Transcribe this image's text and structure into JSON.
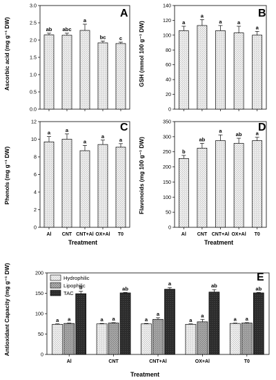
{
  "chart_data": [
    {
      "id": "A",
      "type": "bar",
      "panel_letter": "A",
      "categories": [
        "Al",
        "CNT",
        "CNT+Al",
        "OX+Al",
        "T0"
      ],
      "ylabel": "Ascorbic acid (mg g⁻¹ DW)",
      "ylim": [
        0,
        3.0
      ],
      "yticks": [
        "0.0",
        "0.5",
        "1.0",
        "1.5",
        "2.0",
        "2.5",
        "3.0"
      ],
      "series": [
        {
          "values": [
            2.15,
            2.14,
            2.28,
            1.92,
            1.9
          ],
          "errors": [
            0.05,
            0.06,
            0.18,
            0.05,
            0.04
          ],
          "pattern": "hatch-light"
        }
      ],
      "annotations": [
        [
          "ab",
          "abc",
          "a",
          "bc",
          "c"
        ]
      ],
      "show_xticklabels": false,
      "xlabel": ""
    },
    {
      "id": "B",
      "type": "bar",
      "panel_letter": "B",
      "categories": [
        "Al",
        "CNT",
        "CNT+Al",
        "OX+Al",
        "T0"
      ],
      "ylabel": "GSH (mmol 100 g⁻¹ DW)",
      "ylim": [
        0,
        140
      ],
      "yticks": [
        "0",
        "20",
        "40",
        "60",
        "80",
        "100",
        "120",
        "140"
      ],
      "series": [
        {
          "values": [
            106,
            113,
            106,
            103,
            100
          ],
          "errors": [
            6,
            8,
            7,
            9,
            5
          ],
          "pattern": "hatch-light"
        }
      ],
      "annotations": [
        [
          "a",
          "a",
          "a",
          "a",
          "a"
        ]
      ],
      "show_xticklabels": false,
      "xlabel": ""
    },
    {
      "id": "C",
      "type": "bar",
      "panel_letter": "C",
      "categories": [
        "Al",
        "CNT",
        "CNT+Al",
        "OX+Al",
        "T0"
      ],
      "ylabel": "Phenols (mg g⁻¹ DW)",
      "ylim": [
        0,
        12
      ],
      "yticks": [
        "0",
        "2",
        "4",
        "6",
        "8",
        "10",
        "12"
      ],
      "series": [
        {
          "values": [
            9.7,
            10.0,
            8.7,
            9.4,
            9.1
          ],
          "errors": [
            0.6,
            0.6,
            0.6,
            0.5,
            0.4
          ],
          "pattern": "hatch-light"
        }
      ],
      "annotations": [
        [
          "a",
          "a",
          "a",
          "a",
          "a"
        ]
      ],
      "show_xticklabels": true,
      "xlabel": "Treatment"
    },
    {
      "id": "D",
      "type": "bar",
      "panel_letter": "D",
      "categories": [
        "Al",
        "CNT",
        "CNT+Al",
        "OX+Al",
        "T0"
      ],
      "ylabel": "Flavonoids (mg 100 g⁻¹ DW)",
      "ylim": [
        0,
        350
      ],
      "yticks": [
        "0",
        "50",
        "100",
        "150",
        "200",
        "250",
        "300",
        "350"
      ],
      "series": [
        {
          "values": [
            228,
            262,
            287,
            278,
            287
          ],
          "errors": [
            10,
            16,
            19,
            17,
            11
          ],
          "pattern": "hatch-light"
        }
      ],
      "annotations": [
        [
          "b",
          "ab",
          "a",
          "ab",
          "a"
        ]
      ],
      "show_xticklabels": true,
      "xlabel": "Treatment"
    },
    {
      "id": "E",
      "type": "bar",
      "panel_letter": "E",
      "categories": [
        "Al",
        "CNT",
        "CNT+Al",
        "OX+Al",
        "T0"
      ],
      "ylabel": "Antioxidant Capacity (mg g⁻¹ DW)",
      "ylim": [
        0,
        200
      ],
      "yticks": [
        "0",
        "50",
        "100",
        "150",
        "200"
      ],
      "series": [
        {
          "name": "Hydrophilic",
          "values": [
            74,
            75,
            75,
            74,
            76
          ],
          "errors": [
            1,
            1,
            1,
            1,
            1
          ],
          "pattern": "hatch-light"
        },
        {
          "name": "Lipophilic",
          "values": [
            76,
            77,
            86,
            80,
            77
          ],
          "errors": [
            1,
            1,
            4,
            6,
            1
          ],
          "pattern": "hatch-medium"
        },
        {
          "name": "TAC",
          "values": [
            149,
            151,
            160,
            153,
            151
          ],
          "errors": [
            6,
            1,
            4,
            6,
            1
          ],
          "pattern": "hatch-dark"
        }
      ],
      "annotations": [
        [
          "a",
          "a",
          "a",
          "a",
          "a"
        ],
        [
          "a",
          "a",
          "a",
          "a",
          "a"
        ],
        [
          "b",
          "ab",
          "a",
          "ab",
          "ab"
        ]
      ],
      "legend_position": "top-left",
      "show_xticklabels": true,
      "xlabel": "Treatment"
    }
  ]
}
